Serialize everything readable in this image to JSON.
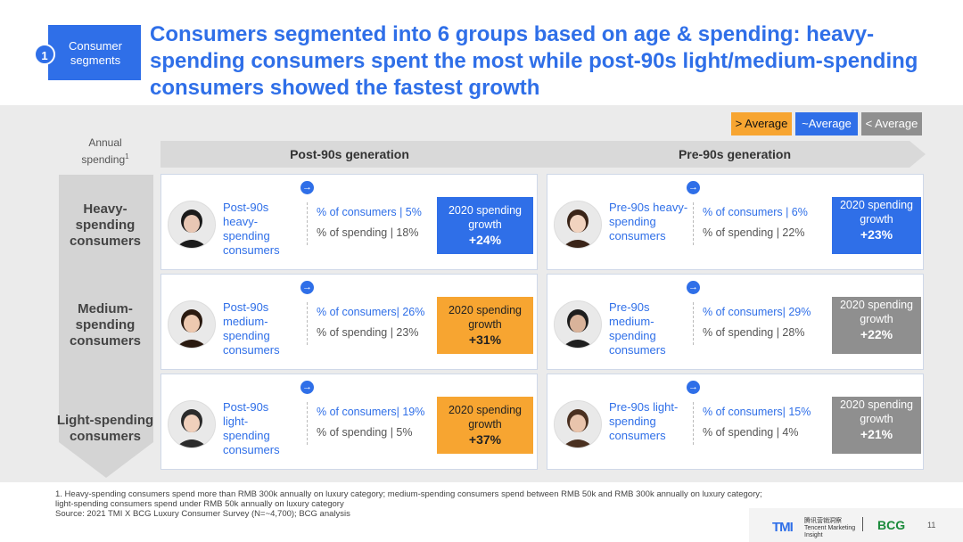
{
  "header": {
    "section_number": "1",
    "section_label": "Consumer segments",
    "headline": "Consumers segmented into 6 groups based on age & spending: heavy-spending consumers spent the most while post-90s light/medium-spending consumers showed the fastest growth"
  },
  "legend": {
    "above": "> Average",
    "average": "~Average",
    "below": "< Average",
    "colors": {
      "above": "#f7a531",
      "average": "#2f6fe8",
      "below": "#8f8f8f"
    }
  },
  "annual_spending_label": "Annual spending",
  "annual_spending_sup": "1",
  "generations": {
    "post90": "Post-90s generation",
    "pre90": "Pre-90s generation"
  },
  "segments": [
    {
      "label": "Heavy-spending consumers"
    },
    {
      "label": "Medium-spending consumers"
    },
    {
      "label": "Light-spending consumers"
    }
  ],
  "cards": [
    {
      "title": "Post-90s heavy-spending consumers",
      "consumers": "% of consumers | 5%",
      "spending": "% of spending | 18%",
      "growth_label": "2020 spending growth",
      "growth_value": "+24%",
      "level": "avg",
      "icon": "arrow-right-icon"
    },
    {
      "title": "Pre-90s heavy-spending consumers",
      "consumers": "% of consumers | 6%",
      "spending": "% of spending | 22%",
      "growth_label": "2020 spending growth",
      "growth_value": "+23%",
      "level": "avg",
      "icon": "arrow-right-icon"
    },
    {
      "title": "Post-90s medium-spending consumers",
      "consumers": "% of consumers| 26%",
      "spending": "% of spending | 23%",
      "growth_label": "2020 spending growth",
      "growth_value": "+31%",
      "level": "above",
      "icon": "arrow-right-icon"
    },
    {
      "title": "Pre-90s medium-spending consumers",
      "consumers": "% of consumers| 29%",
      "spending": "% of spending | 28%",
      "growth_label": "2020 spending growth",
      "growth_value": "+22%",
      "level": "below",
      "icon": "arrow-right-icon"
    },
    {
      "title": "Post-90s light-spending consumers",
      "consumers": "% of consumers| 19%",
      "spending": "% of spending | 5%",
      "growth_label": "2020 spending growth",
      "growth_value": "+37%",
      "level": "above",
      "icon": "arrow-right-icon"
    },
    {
      "title": "Pre-90s light-spending consumers",
      "consumers": "% of consumers| 15%",
      "spending": "% of spending | 4%",
      "growth_label": "2020 spending growth",
      "growth_value": "+21%",
      "level": "below",
      "icon": "arrow-right-icon"
    }
  ],
  "footnote": {
    "line1": "1. Heavy-spending consumers spend more than RMB 300k annually on luxury category; medium-spending consumers spend between RMB 50k and RMB 300k annually on luxury category; light-spending consumers spend under RMB 50k annually on luxury category",
    "source": "Source: 2021 TMI X BCG Luxury Consumer Survey (N=~4,700); BCG analysis"
  },
  "logos": {
    "tmi": "TMI",
    "tmi_sub": "腾讯营销洞察 Tencent Marketing Insight",
    "bcg": "BCG"
  },
  "page_number": "11"
}
